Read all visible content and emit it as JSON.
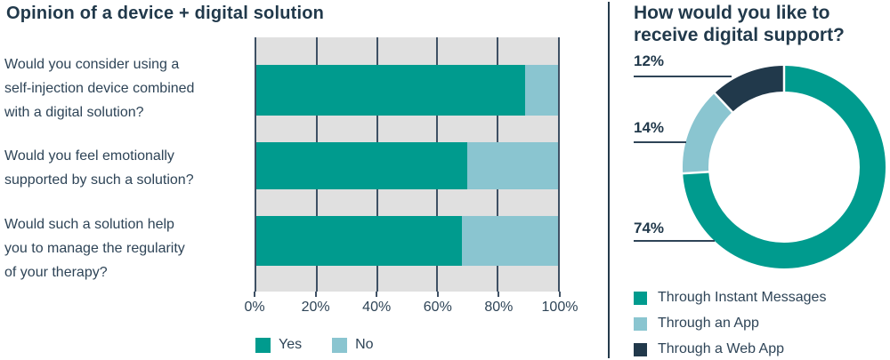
{
  "colors": {
    "teal": "#009b8e",
    "light_blue": "#8ac5d0",
    "dark_navy": "#21394b",
    "text_navy": "#2e4457",
    "grid": "#3e5064",
    "plot_background": "#e0e0e0"
  },
  "left_chart_display": {
    "questions_lines": [
      "Would you consider using a\nself-injection device combined\nwith a digital solution?",
      "Would you feel emotionally\nsupported by such a solution?",
      "Would such a solution help\nyou to manage the regularity\nof your therapy?"
    ]
  },
  "right_chart_display": {
    "title_lines": "How would you like to\nreceive digital support?",
    "callouts": [
      "12%",
      "14%",
      "74%"
    ]
  },
  "chart_data": [
    {
      "type": "bar",
      "orientation": "horizontal",
      "stacked": true,
      "title": "Opinion of a device + digital solution",
      "categories": [
        "Would you consider using a self-injection device combined with a digital solution?",
        "Would you feel emotionally supported by such a solution?",
        "Would such a solution help you to manage the regularity of your therapy?"
      ],
      "series": [
        {
          "name": "Yes",
          "color": "#009b8e",
          "values": [
            89,
            70,
            68
          ]
        },
        {
          "name": "No",
          "color": "#8ac5d0",
          "values": [
            11,
            30,
            32
          ]
        }
      ],
      "xlim": [
        0,
        100
      ],
      "x_ticks": [
        "0%",
        "20%",
        "40%",
        "60%",
        "80%",
        "100%"
      ],
      "grid": true,
      "legend_position": "bottom"
    },
    {
      "type": "pie",
      "donut": true,
      "start_angle_deg_from_top": 0,
      "direction": "clockwise",
      "title": "How would you like to receive digital support?",
      "labels": [
        "Through Instant Messages",
        "Through an App",
        "Through a Web App"
      ],
      "values": [
        74,
        14,
        12
      ],
      "colors": [
        "#009b8e",
        "#8ac5d0",
        "#21394b"
      ],
      "annotations": [
        "74%",
        "14%",
        "12%"
      ],
      "legend_position": "bottom"
    }
  ]
}
